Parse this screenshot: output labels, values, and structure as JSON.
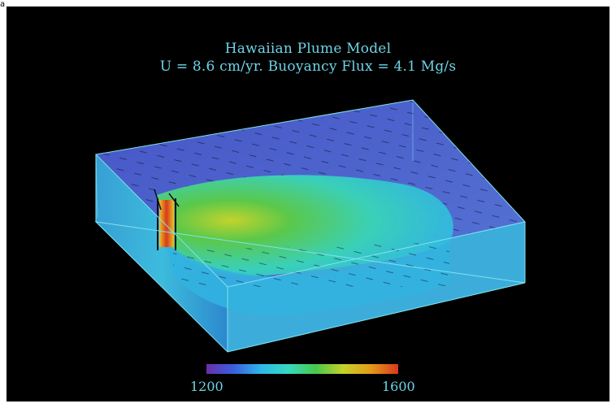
{
  "figure": {
    "corner_mark": "a",
    "title": "Hawaiian Plume Model",
    "subtitle": "U = 8.6 cm/yr.   Buoyancy Flux = 4.1 Mg/s"
  },
  "colorbar": {
    "min_label": "1200",
    "max_label": "1600",
    "stops": [
      "#6a2fa8",
      "#3a5fe0",
      "#2fb8e8",
      "#36d9c0",
      "#49c94a",
      "#c6d12a",
      "#e59a1a",
      "#d93a1a"
    ]
  },
  "colors": {
    "box_edge": "#7fe3ef",
    "background_slab": "#4a6ad8",
    "cool_region": "#2fb9e6",
    "plume_core": "#56c84a",
    "plume_hot": "#d93a1a",
    "text": "#6fd3e6"
  }
}
